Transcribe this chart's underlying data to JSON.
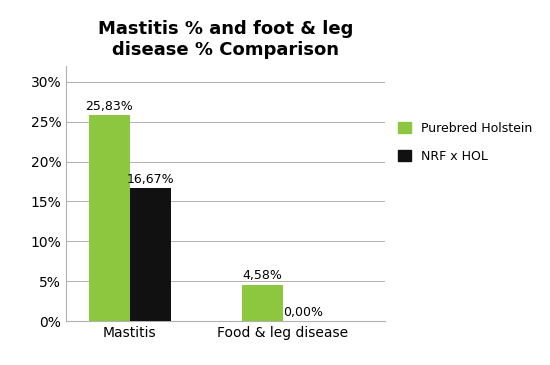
{
  "title": "Mastitis % and foot & leg\ndisease % Comparison",
  "categories": [
    "Mastitis",
    "Food & leg disease"
  ],
  "purebred_values": [
    25.83,
    4.58
  ],
  "nrf_values": [
    16.67,
    0.0
  ],
  "purebred_labels": [
    "25,83%",
    "4,58%"
  ],
  "nrf_labels": [
    "16,67%",
    "0,00%"
  ],
  "purebred_color": "#8dc63f",
  "nrf_color": "#111111",
  "legend_purebred": "Purebred Holstein",
  "legend_nrf": "NRF x HOL",
  "ylim": [
    0,
    32
  ],
  "yticks": [
    0,
    5,
    10,
    15,
    20,
    25,
    30
  ],
  "ytick_labels": [
    "0%",
    "5%",
    "10%",
    "15%",
    "20%",
    "25%",
    "30%"
  ],
  "background_color": "#ffffff",
  "bar_width": 0.32,
  "x_positions": [
    0.5,
    1.7
  ]
}
